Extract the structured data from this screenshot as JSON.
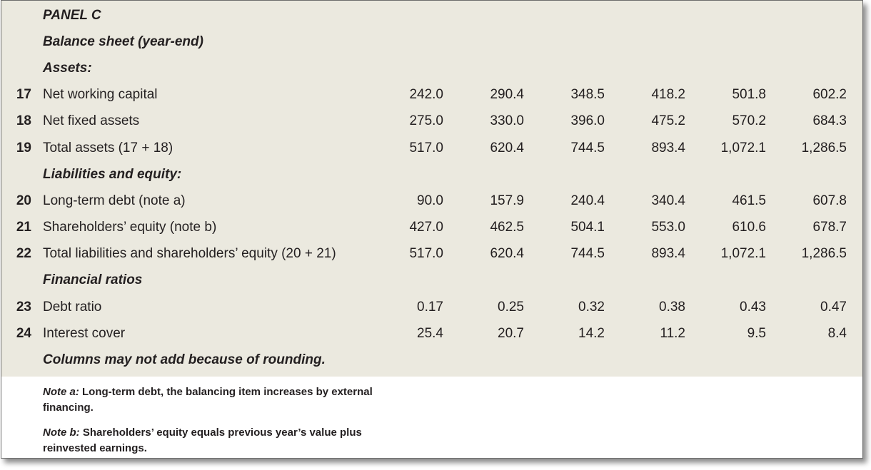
{
  "panel_title": "PANEL C",
  "section_title": "Balance sheet (year-end)",
  "assets_heading": "Assets:",
  "liabilities_heading": "Liabilities and equity:",
  "ratios_heading": "Financial ratios",
  "footnote": "Columns may not add because of rounding.",
  "rows": {
    "r17": {
      "num": "17",
      "label": "Net working capital",
      "values": [
        "242.0",
        "290.4",
        "348.5",
        "418.2",
        "501.8",
        "602.2"
      ]
    },
    "r18": {
      "num": "18",
      "label": "Net fixed assets",
      "values": [
        "275.0",
        "330.0",
        "396.0",
        "475.2",
        "570.2",
        "684.3"
      ]
    },
    "r19": {
      "num": "19",
      "label": "Total assets (17 + 18)",
      "values": [
        "517.0",
        "620.4",
        "744.5",
        "893.4",
        "1,072.1",
        "1,286.5"
      ]
    },
    "r20": {
      "num": "20",
      "label": "Long-term debt (note a)",
      "values": [
        "90.0",
        "157.9",
        "240.4",
        "340.4",
        "461.5",
        "607.8"
      ]
    },
    "r21": {
      "num": "21",
      "label": "Shareholders’ equity (note b)",
      "values": [
        "427.0",
        "462.5",
        "504.1",
        "553.0",
        "610.6",
        "678.7"
      ]
    },
    "r22": {
      "num": "22",
      "label": "Total liabilities and shareholders’ equity (20 + 21)",
      "values": [
        "517.0",
        "620.4",
        "744.5",
        "893.4",
        "1,072.1",
        "1,286.5"
      ]
    },
    "r23": {
      "num": "23",
      "label": "Debt ratio",
      "values": [
        "0.17",
        "0.25",
        "0.32",
        "0.38",
        "0.43",
        "0.47"
      ]
    },
    "r24": {
      "num": "24",
      "label": "Interest cover",
      "values": [
        "25.4",
        "20.7",
        "14.2",
        "11.2",
        "9.5",
        "8.4"
      ]
    }
  },
  "notes": {
    "a_tag": "Note a:",
    "a_text": " Long-term debt, the balancing item increases by external financing.",
    "b_tag": "Note b:",
    "b_text": " Shareholders’ equity equals previous year’s value plus reinvested earnings."
  }
}
